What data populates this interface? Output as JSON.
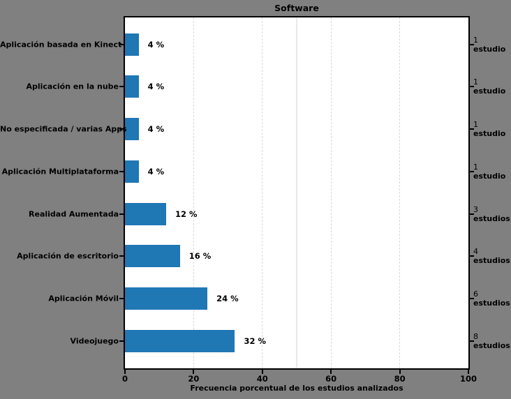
{
  "figure": {
    "background_color": "#808080",
    "plot_background_color": "#ffffff",
    "spine_color": "#000000",
    "bar_color": "#1f77b4",
    "grid_color": "#d9d9d9",
    "reference_line_color": "#e9e9e9",
    "text_color": "#000000"
  },
  "chart_data": {
    "type": "bar",
    "orientation": "horizontal",
    "title": "Software",
    "xlabel": "Frecuencia porcentual de los estudios analizados",
    "xlim": [
      0,
      100
    ],
    "xticks": [
      0,
      20,
      40,
      60,
      80,
      100
    ],
    "grid": "vertical dashed gridlines at x ticks, behind bars",
    "legend": "none",
    "reference_line_x": 50,
    "categories": [
      "Aplicación basada en Kinect",
      "Aplicación en la nube",
      "No especificada / varias Apps",
      "Aplicación Multiplataforma",
      "Realidad Aumentada",
      "Aplicación de escritorio",
      "Aplicación Móvil",
      "Videojuego"
    ],
    "values": [
      4,
      4,
      4,
      4,
      12,
      16,
      24,
      32
    ],
    "value_labels": [
      "4 %",
      "4 %",
      "4 %",
      "4 %",
      "12 %",
      "16 %",
      "24 %",
      "32 %"
    ],
    "counts": [
      1,
      1,
      1,
      1,
      3,
      4,
      6,
      8
    ],
    "count_labels": [
      [
        "1",
        "estudio"
      ],
      [
        "1",
        "estudio"
      ],
      [
        "1",
        "estudio"
      ],
      [
        "1",
        "estudio"
      ],
      [
        "3",
        "estudios"
      ],
      [
        "4",
        "estudios"
      ],
      [
        "6",
        "estudios"
      ],
      [
        "8",
        "estudios"
      ]
    ]
  }
}
